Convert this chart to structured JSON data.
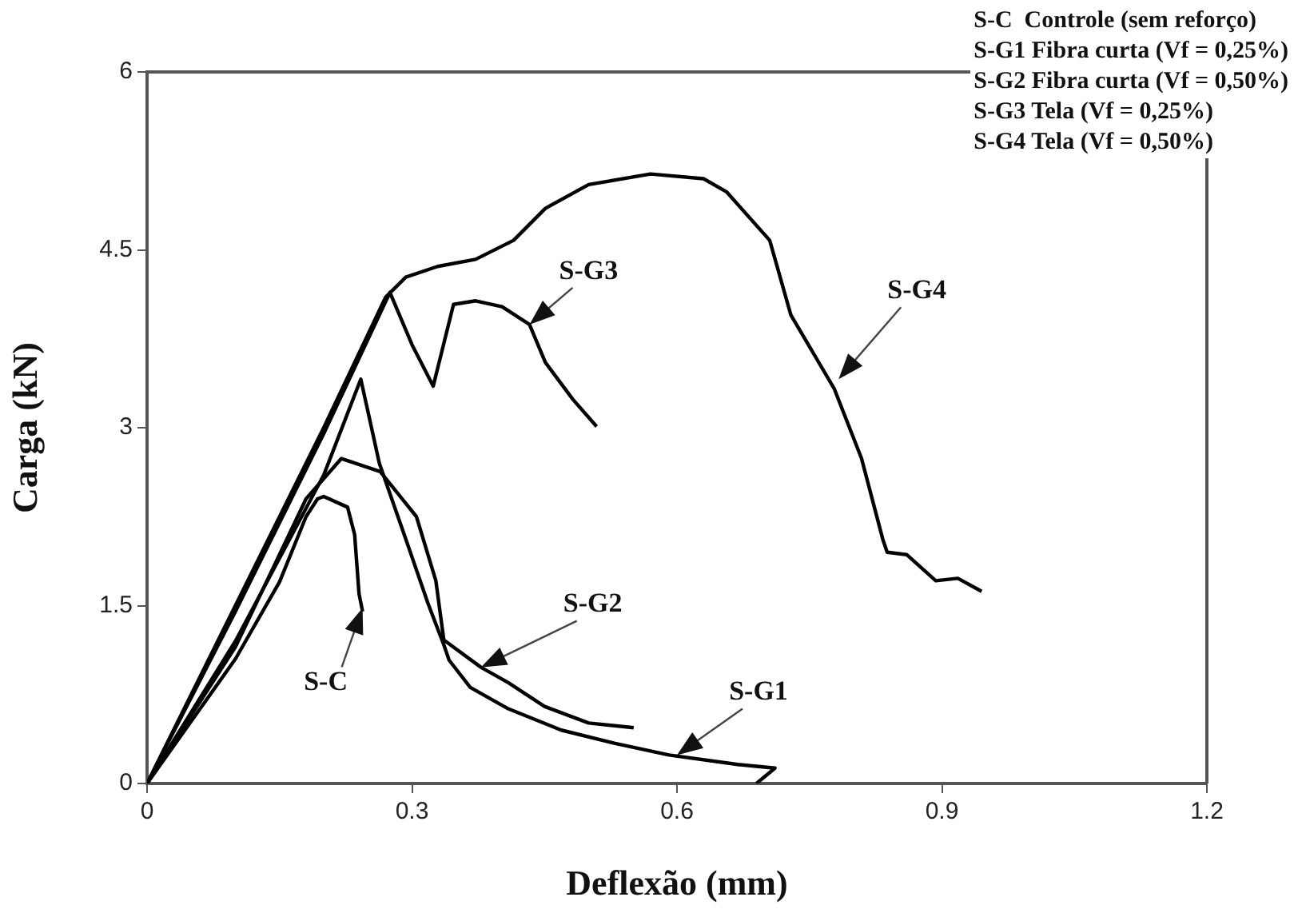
{
  "chart_data": {
    "type": "line",
    "xlabel": "Deflexão (mm)",
    "ylabel": "Carga (kN)",
    "xlim": [
      0,
      1.2
    ],
    "xticks": [
      0,
      0.3,
      0.6,
      0.9,
      1.2
    ],
    "ylim": [
      0,
      6
    ],
    "yticks": [
      0,
      1.5,
      3,
      4.5,
      6
    ],
    "grid": false,
    "legend": false,
    "marker": "none",
    "line_style": "solid",
    "series": [
      {
        "color": "#000000",
        "x": [
          0,
          0.1,
          0.15,
          0.18,
          0.193,
          0.2,
          0.227,
          0.235,
          0.24,
          0.244
        ],
        "values": [
          0,
          1.05,
          1.7,
          2.25,
          2.4,
          2.42,
          2.33,
          2.1,
          1.6,
          1.45
        ]
      },
      {
        "color": "#000000",
        "x": [
          0,
          0.1,
          0.2,
          0.242,
          0.263,
          0.293,
          0.318,
          0.336,
          0.342,
          0.366,
          0.409,
          0.469,
          0.529,
          0.591,
          0.669,
          0.711,
          0.69
        ],
        "values": [
          0,
          1.2,
          2.6,
          3.41,
          2.7,
          2.06,
          1.52,
          1.17,
          1.04,
          0.81,
          0.63,
          0.45,
          0.34,
          0.24,
          0.16,
          0.13,
          0
        ]
      },
      {
        "color": "#000000",
        "x": [
          0,
          0.1,
          0.18,
          0.22,
          0.264,
          0.305,
          0.327,
          0.336,
          0.378,
          0.409,
          0.45,
          0.5,
          0.551
        ],
        "values": [
          0,
          1.15,
          2.4,
          2.74,
          2.63,
          2.25,
          1.71,
          1.21,
          0.98,
          0.85,
          0.65,
          0.51,
          0.47
        ]
      },
      {
        "color": "#000000",
        "x": [
          0,
          0.1,
          0.2,
          0.275,
          0.3,
          0.324,
          0.347,
          0.372,
          0.402,
          0.433,
          0.451,
          0.482,
          0.509
        ],
        "values": [
          0,
          1.45,
          2.95,
          4.14,
          3.7,
          3.35,
          4.04,
          4.07,
          4.02,
          3.87,
          3.55,
          3.24,
          3.01
        ]
      },
      {
        "color": "#000000",
        "x": [
          0,
          0.1,
          0.2,
          0.27,
          0.293,
          0.329,
          0.372,
          0.415,
          0.451,
          0.5,
          0.57,
          0.63,
          0.656,
          0.705,
          0.729,
          0.778,
          0.809,
          0.833,
          0.838,
          0.86,
          0.893,
          0.918,
          0.945
        ],
        "values": [
          0,
          1.5,
          3.0,
          4.1,
          4.27,
          4.36,
          4.42,
          4.58,
          4.85,
          5.05,
          5.14,
          5.1,
          4.99,
          4.58,
          3.95,
          3.33,
          2.74,
          2.06,
          1.95,
          1.93,
          1.71,
          1.73,
          1.62
        ]
      }
    ],
    "annotations": [
      {
        "text": "S-C",
        "x": 0.244,
        "y": 1.48
      },
      {
        "text": "S-G1",
        "x": 0.6,
        "y": 0.24
      },
      {
        "text": "S-G2",
        "x": 0.378,
        "y": 0.98
      },
      {
        "text": "S-G3",
        "x": 0.433,
        "y": 3.87
      },
      {
        "text": "S-G4",
        "x": 0.783,
        "y": 3.41
      },
      "S-C  Controle (sem reforço)",
      "S-G1 Fibra curta (Vf = 0,25%)",
      "S-G2 Fibra curta (Vf = 0,50%)",
      "S-G3 Tela (Vf = 0,25%)",
      "S-G4 Tela (Vf = 0,50%)"
    ]
  }
}
